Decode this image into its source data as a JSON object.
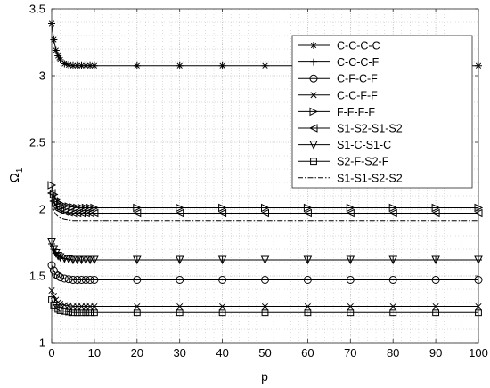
{
  "chart_data": {
    "type": "line",
    "title": "",
    "xlabel": "p",
    "ylabel": "Ω",
    "ylabel_sub": "1",
    "xlim": [
      0,
      100
    ],
    "ylim": [
      1,
      3.5
    ],
    "x_ticks": [
      0,
      10,
      20,
      30,
      40,
      50,
      60,
      70,
      80,
      90,
      100
    ],
    "y_ticks": [
      1,
      1.5,
      2,
      2.5,
      3,
      3.5
    ],
    "x_tick_labels": [
      "0",
      "10",
      "20",
      "30",
      "40",
      "50",
      "60",
      "70",
      "80",
      "90",
      "100"
    ],
    "y_tick_labels": [
      "1",
      "1.5",
      "2",
      "2.5",
      "3",
      "3.5"
    ],
    "grid": true,
    "legend_position": "top-right",
    "x": [
      0,
      0.5,
      1,
      1.5,
      2,
      3,
      4,
      5,
      6,
      7,
      8,
      9,
      10,
      20,
      30,
      40,
      50,
      60,
      70,
      80,
      90,
      100
    ],
    "series": [
      {
        "name": "C-C-C-C",
        "marker": "asterisk",
        "line": "solid",
        "values": [
          3.39,
          3.27,
          3.19,
          3.15,
          3.12,
          3.09,
          3.08,
          3.075,
          3.075,
          3.075,
          3.075,
          3.075,
          3.075,
          3.075,
          3.075,
          3.075,
          3.075,
          3.075,
          3.075,
          3.075,
          3.075,
          3.075
        ]
      },
      {
        "name": "C-C-C-F",
        "marker": "plus",
        "line": "solid",
        "values": [
          1.74,
          1.7,
          1.67,
          1.65,
          1.64,
          1.63,
          1.625,
          1.62,
          1.62,
          1.62,
          1.62,
          1.62,
          1.62,
          1.62,
          1.62,
          1.62,
          1.62,
          1.62,
          1.62,
          1.62,
          1.62,
          1.62
        ]
      },
      {
        "name": "C-F-C-F",
        "marker": "circle",
        "line": "solid",
        "values": [
          1.58,
          1.54,
          1.51,
          1.5,
          1.49,
          1.48,
          1.475,
          1.47,
          1.47,
          1.47,
          1.47,
          1.47,
          1.47,
          1.47,
          1.47,
          1.47,
          1.47,
          1.47,
          1.47,
          1.47,
          1.47,
          1.47
        ]
      },
      {
        "name": "C-C-F-F",
        "marker": "x",
        "line": "solid",
        "values": [
          1.39,
          1.35,
          1.32,
          1.3,
          1.29,
          1.28,
          1.275,
          1.27,
          1.27,
          1.27,
          1.27,
          1.27,
          1.27,
          1.27,
          1.27,
          1.27,
          1.27,
          1.27,
          1.27,
          1.27,
          1.27,
          1.27
        ]
      },
      {
        "name": "F-F-F-F",
        "marker": "triangle-right",
        "line": "solid",
        "values": [
          2.18,
          2.11,
          2.07,
          2.05,
          2.04,
          2.025,
          2.02,
          2.015,
          2.01,
          2.01,
          2.01,
          2.01,
          2.01,
          2.01,
          2.01,
          2.01,
          2.01,
          2.01,
          2.01,
          2.01,
          2.01,
          2.01
        ]
      },
      {
        "name": "S1-S2-S1-S2",
        "marker": "triangle-left",
        "line": "solid",
        "values": [
          2.12,
          2.06,
          2.02,
          2.0,
          1.99,
          1.98,
          1.975,
          1.97,
          1.97,
          1.97,
          1.97,
          1.97,
          1.97,
          1.97,
          1.97,
          1.97,
          1.97,
          1.97,
          1.97,
          1.97,
          1.97,
          1.97
        ]
      },
      {
        "name": "S1-C-S1-C",
        "marker": "triangle-down",
        "line": "solid",
        "values": [
          1.75,
          1.7,
          1.67,
          1.65,
          1.64,
          1.63,
          1.625,
          1.62,
          1.62,
          1.62,
          1.62,
          1.62,
          1.62,
          1.62,
          1.62,
          1.62,
          1.62,
          1.62,
          1.62,
          1.62,
          1.62,
          1.62
        ]
      },
      {
        "name": "S2-F-S2-F",
        "marker": "square",
        "line": "solid",
        "values": [
          1.32,
          1.28,
          1.26,
          1.25,
          1.24,
          1.235,
          1.23,
          1.225,
          1.225,
          1.225,
          1.225,
          1.225,
          1.225,
          1.225,
          1.225,
          1.225,
          1.225,
          1.225,
          1.225,
          1.225,
          1.225,
          1.225
        ]
      },
      {
        "name": "S1-S1-S2-S2",
        "marker": "none",
        "line": "dashdot",
        "values": [
          2.05,
          1.99,
          1.96,
          1.945,
          1.935,
          1.925,
          1.92,
          1.915,
          1.915,
          1.915,
          1.915,
          1.915,
          1.915,
          1.915,
          1.915,
          1.915,
          1.915,
          1.915,
          1.915,
          1.915,
          1.915,
          1.915
        ]
      }
    ]
  }
}
